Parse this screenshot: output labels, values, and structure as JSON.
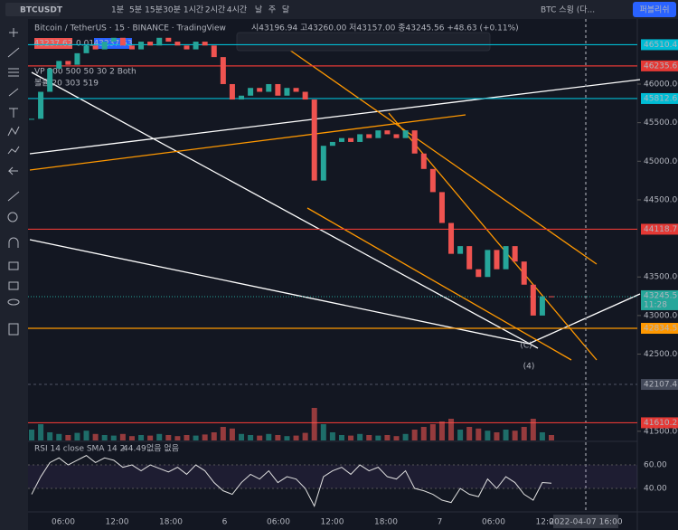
{
  "toolbar": {
    "symbol": "BTCUSDT",
    "intervals": [
      "1분",
      "5분",
      "15분",
      "30분",
      "1시간",
      "2시간",
      "4시간",
      "날",
      "주",
      "달"
    ],
    "layout_name": "BTC 스윙 (다...",
    "publish": "퍼블리쉬"
  },
  "legend": {
    "title": "Bitcoin / TetherUS · 15 · BINANCE · TradingView",
    "ohlc": "시43196.94 고43260.00 저43157.00 종43245.56 +48.63 (+0.11%)",
    "bid": "43237.62",
    "spread": "0.01",
    "ask": "43237.63",
    "volume_profile": "VP 200 500 50 30 2 Both",
    "volume": "볼륨 20 303 519",
    "rsi": "RSI 14 close SMA 14 2",
    "rsi_value": "44.49",
    "rsi_extra": "없음 없음"
  },
  "annotations": {
    "wave_c": "(C)",
    "wave_4": "(4)"
  },
  "price_axis": {
    "ylim": [
      41381,
      46832
    ],
    "ticks": [
      {
        "value": 46000,
        "label": "46000.00"
      },
      {
        "value": 45500,
        "label": "45500.00"
      },
      {
        "value": 45000,
        "label": "45000.00"
      },
      {
        "value": 44500,
        "label": "44500.00"
      },
      {
        "value": 43500,
        "label": "43500.00"
      },
      {
        "value": 43000,
        "label": "43000.00"
      },
      {
        "value": 42500,
        "label": "42500.00"
      },
      {
        "value": 41500,
        "label": "41500.00"
      }
    ],
    "levels": [
      {
        "value": 46510.41,
        "color": "#00bcd4"
      },
      {
        "value": 46235.63,
        "color": "#e53935"
      },
      {
        "value": 45812.61,
        "color": "#00bcd4"
      },
      {
        "value": 44118.77,
        "color": "#e53935"
      },
      {
        "value": 42834.51,
        "color": "#ff9800"
      },
      {
        "value": 42107.45,
        "color": "#444a5a"
      },
      {
        "value": 41610.2,
        "color": "#e53935"
      }
    ],
    "current": {
      "value": 43245.56,
      "countdown": "11:28",
      "color": "#26a69a"
    }
  },
  "price": {
    "values": [
      45550,
      45900,
      46200,
      46300,
      46250,
      46400,
      46500,
      46450,
      46550,
      46600,
      46500,
      46450,
      46550,
      46500,
      46600,
      46550,
      46500,
      46450,
      46550,
      46500,
      46350,
      46000,
      45800,
      45850,
      45950,
      45900,
      46000,
      45850,
      45950,
      45900,
      45800,
      44750,
      45200,
      45250,
      45300,
      45250,
      45350,
      45300,
      45400,
      45350,
      45300,
      45400,
      45100,
      44900,
      44600,
      44200,
      43800,
      43900,
      43600,
      43500,
      43850,
      43600,
      43900,
      43700,
      43400,
      43000,
      43250,
      43245.56
    ],
    "up_color": "#26a69a",
    "down_color": "#ef5350"
  },
  "volume": {
    "ylim": [
      0,
      100
    ],
    "values": [
      20,
      30,
      15,
      12,
      10,
      14,
      18,
      12,
      10,
      9,
      12,
      8,
      10,
      9,
      12,
      10,
      8,
      10,
      9,
      11,
      15,
      25,
      22,
      12,
      10,
      9,
      12,
      10,
      8,
      9,
      14,
      60,
      30,
      15,
      10,
      9,
      12,
      10,
      9,
      10,
      8,
      12,
      20,
      25,
      30,
      35,
      40,
      20,
      25,
      22,
      18,
      15,
      20,
      18,
      25,
      40,
      15,
      10
    ]
  },
  "rsi": {
    "ylim": [
      20.8,
      78.5
    ],
    "ticks": [
      {
        "value": 60,
        "label": "60.00"
      },
      {
        "value": 40,
        "label": "40.00"
      }
    ],
    "values": [
      35,
      50,
      62,
      66,
      60,
      64,
      68,
      62,
      66,
      64,
      58,
      60,
      55,
      60,
      57,
      54,
      58,
      52,
      60,
      55,
      45,
      38,
      35,
      45,
      52,
      48,
      55,
      45,
      50,
      48,
      40,
      25,
      50,
      55,
      58,
      52,
      60,
      55,
      58,
      50,
      48,
      55,
      40,
      38,
      35,
      30,
      28,
      40,
      35,
      33,
      48,
      40,
      50,
      45,
      35,
      30,
      45,
      44.49
    ]
  },
  "time_axis": {
    "labels": [
      "06:00",
      "12:00",
      "18:00",
      "6",
      "06:00",
      "12:00",
      "18:00",
      "7",
      "06:00",
      "12:00"
    ],
    "cursor": "2022-04-07  16:00"
  }
}
